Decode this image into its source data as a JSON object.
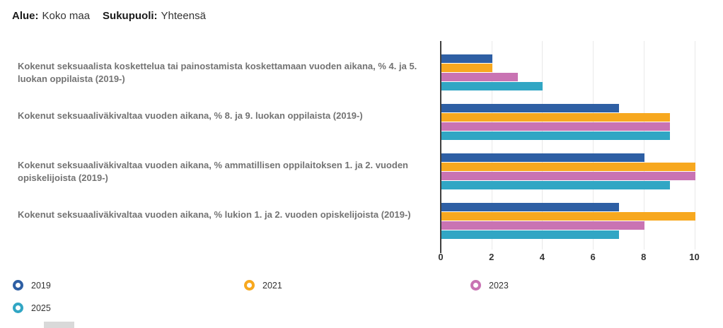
{
  "header": {
    "filters": [
      {
        "label": "Alue:",
        "value": "Koko maa"
      },
      {
        "label": "Sukupuoli:",
        "value": "Yhteensä"
      }
    ]
  },
  "chart_data": {
    "type": "bar",
    "orientation": "horizontal",
    "title": "",
    "xlabel": "",
    "ylabel": "",
    "xlim": [
      0,
      10
    ],
    "x_ticks": [
      0,
      2,
      4,
      6,
      8,
      10
    ],
    "grid": true,
    "legend_position": "bottom",
    "categories": [
      "Kokenut seksuaalista koskettelua tai painostamista koskettamaan vuoden aikana, % 4. ja 5. luokan oppilaista (2019-)",
      "Kokenut seksuaaliväkivaltaa vuoden aikana, % 8. ja 9. luokan oppilaista (2019-)",
      "Kokenut seksuaaliväkivaltaa vuoden aikana, % ammatillisen oppilaitoksen 1. ja 2. vuoden opiskelijoista (2019-)",
      "Kokenut seksuaaliväkivaltaa vuoden aikana, % lukion 1. ja 2. vuoden opiskelijoista (2019-)"
    ],
    "series": [
      {
        "name": "2019",
        "color": "#2e5fa4",
        "values": [
          2,
          7,
          8,
          7
        ]
      },
      {
        "name": "2021",
        "color": "#f7a81f",
        "values": [
          2,
          9,
          10,
          10
        ]
      },
      {
        "name": "2023",
        "color": "#c973b3",
        "values": [
          3,
          9,
          10,
          8
        ]
      },
      {
        "name": "2025",
        "color": "#31a6c4",
        "values": [
          4,
          9,
          9,
          7
        ]
      }
    ],
    "colors": {
      "axis": "#3f3f3f",
      "grid": "#e9e9e9",
      "category_label": "#737373",
      "tick_label": "#333333"
    }
  }
}
